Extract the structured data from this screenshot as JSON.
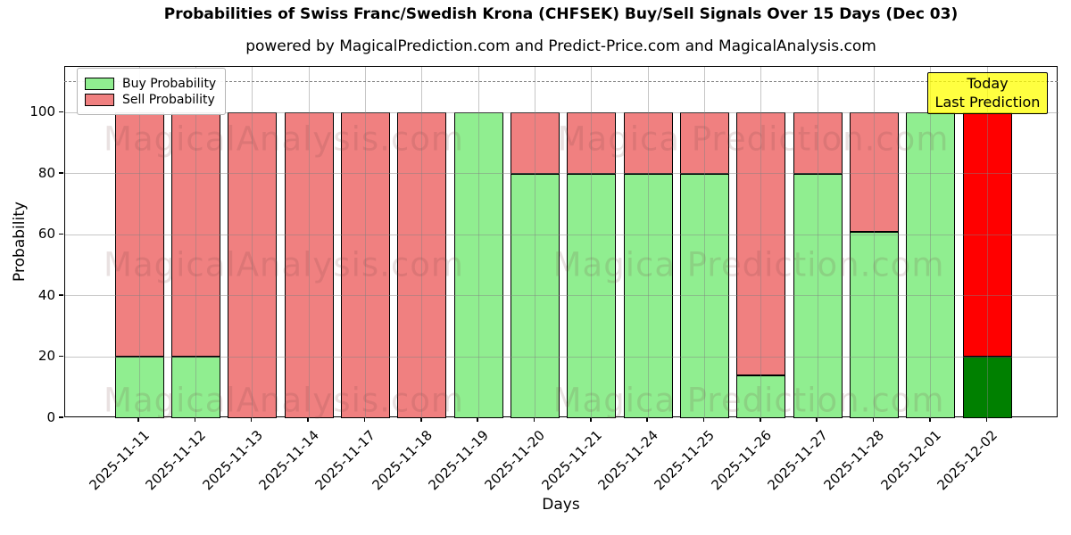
{
  "title": "Probabilities of Swiss Franc/Swedish Krona (CHFSEK) Buy/Sell Signals Over 15 Days (Dec 03)",
  "subtitle": "powered by MagicalPrediction.com and Predict-Price.com and MagicalAnalysis.com",
  "axes": {
    "xlabel": "Days",
    "ylabel": "Probability",
    "yticks": [
      0,
      20,
      40,
      60,
      80,
      100
    ],
    "ylim": [
      0,
      115
    ],
    "grid": true,
    "dashed_line_y": 110
  },
  "legend": {
    "position": "top-left",
    "items": [
      {
        "label": "Buy Probability",
        "color": "#90EE90"
      },
      {
        "label": "Sell Probability",
        "color": "#F08080"
      }
    ]
  },
  "annotation_box": {
    "line1": "Today",
    "line2": "Last Prediction",
    "bg_color": "#FFFF00",
    "border_color": "#000000"
  },
  "watermarks": {
    "left_text": "MagicalAnalysis.com",
    "right_text": "Magica Prediction.com"
  },
  "chart_data": {
    "type": "bar",
    "stacked": true,
    "title": "Probabilities of Swiss Franc/Swedish Krona (CHFSEK) Buy/Sell Signals Over 15 Days (Dec 03)",
    "xlabel": "Days",
    "ylabel": "Probability",
    "ylim": [
      0,
      115
    ],
    "categories": [
      "2025-11-11",
      "2025-11-12",
      "2025-11-13",
      "2025-11-14",
      "2025-11-17",
      "2025-11-18",
      "2025-11-19",
      "2025-11-20",
      "2025-11-21",
      "2025-11-24",
      "2025-11-25",
      "2025-11-26",
      "2025-11-27",
      "2025-11-28",
      "2025-12-01",
      "2025-12-02"
    ],
    "series": [
      {
        "name": "Buy Probability",
        "color": "#90EE90",
        "values": [
          20,
          20,
          0,
          0,
          0,
          0,
          100,
          80,
          80,
          80,
          80,
          14,
          80,
          61,
          100,
          20
        ]
      },
      {
        "name": "Sell Probability",
        "color": "#F08080",
        "values": [
          80,
          80,
          100,
          100,
          100,
          100,
          0,
          20,
          20,
          20,
          20,
          86,
          20,
          39,
          0,
          80
        ]
      }
    ],
    "today": {
      "index": 15,
      "buy_color": "#008000",
      "sell_color": "#FF0000"
    }
  }
}
